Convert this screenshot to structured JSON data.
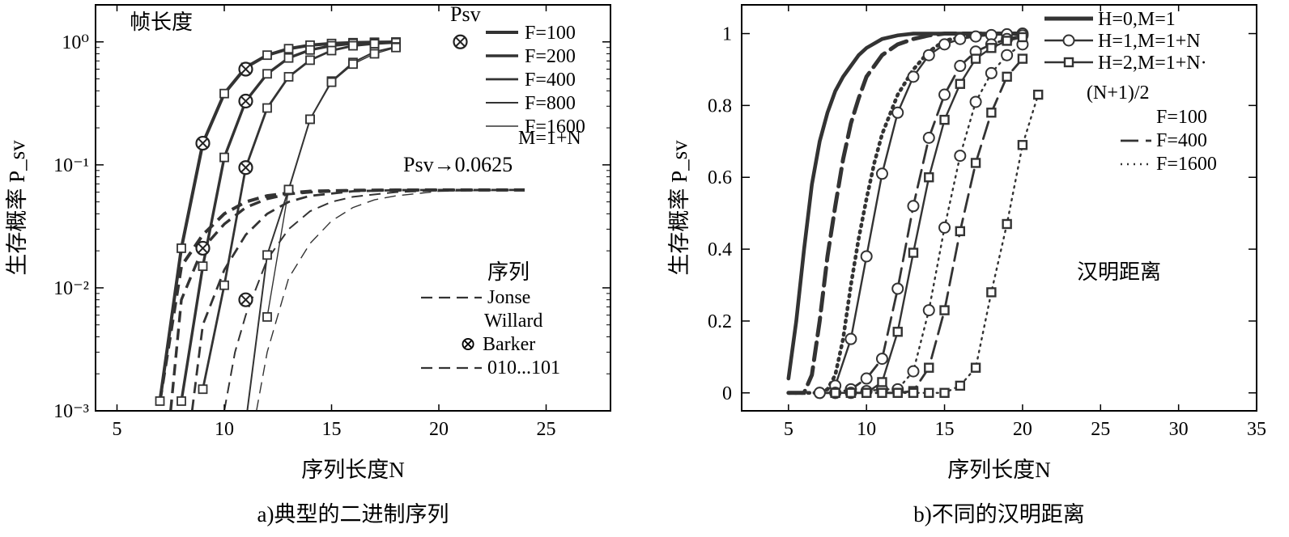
{
  "charts": [
    {
      "caption": "a)典型的二进制序列",
      "xlabel": "序列长度N",
      "ylabel": "生存概率 P_sv",
      "xlim": [
        4,
        28
      ],
      "xticks": [
        5,
        10,
        15,
        20,
        25
      ],
      "xtick_labels": [
        "5",
        "10",
        "15",
        "20",
        "25"
      ],
      "ylog": true,
      "ylim": [
        0.001,
        2
      ],
      "yticks": [
        0.001,
        0.01,
        0.1,
        1
      ],
      "ytick_labels": [
        "10⁻³",
        "10⁻²",
        "10⁻¹",
        "10⁰"
      ],
      "annotations": {
        "top_left": "帧长度",
        "psv_top": "Psv",
        "psv_limit": "Psv→0.0625",
        "m_formula": "M=1+N",
        "legend_title": "序列",
        "barker_glyph": "⊗"
      },
      "frame_legend": [
        "F=100",
        "F=200",
        "F=400",
        "F=800",
        "F=1600"
      ],
      "sequence_legend": [
        "Jonse",
        "Willard",
        "Barker",
        "010...101"
      ],
      "series": {
        "solid_square": [
          {
            "F": 100,
            "x": [
              7,
              8,
              9,
              10,
              11,
              12,
              13,
              14,
              15,
              16,
              17,
              18
            ],
            "y": [
              0.0012,
              0.021,
              0.15,
              0.38,
              0.62,
              0.78,
              0.88,
              0.94,
              0.97,
              0.985,
              0.993,
              0.997
            ]
          },
          {
            "F": 200,
            "x": [
              8,
              9,
              10,
              11,
              12,
              13,
              14,
              15,
              16,
              17,
              18
            ],
            "y": [
              0.0012,
              0.015,
              0.115,
              0.33,
              0.55,
              0.74,
              0.86,
              0.93,
              0.97,
              0.985,
              0.993
            ]
          },
          {
            "F": 400,
            "x": [
              9,
              10,
              11,
              12,
              13,
              14,
              15,
              16,
              17,
              18
            ],
            "y": [
              0.0015,
              0.0105,
              0.095,
              0.29,
              0.52,
              0.71,
              0.85,
              0.93,
              0.965,
              0.985
            ]
          },
          {
            "F": 800,
            "x": [
              11,
              12,
              13,
              14,
              15,
              16,
              17,
              18
            ],
            "y": [
              0.0008,
              0.0185,
              0.063,
              0.235,
              0.48,
              0.68,
              0.83,
              0.91
            ]
          },
          {
            "F": 1600,
            "x": [
              12,
              13,
              14,
              15,
              16,
              17,
              18
            ],
            "y": [
              0.0058,
              0.063,
              0.235,
              0.47,
              0.66,
              0.8,
              0.9
            ]
          }
        ],
        "barker_markers": {
          "x": [
            9,
            11,
            21
          ],
          "y": [
            0.15,
            0.6,
            1.0
          ]
        },
        "barker_markers_f200": {
          "x": [
            9,
            11
          ],
          "y": [
            0.021,
            0.33
          ]
        },
        "barker_markers_f400": {
          "x": [
            11
          ],
          "y": [
            0.095
          ]
        },
        "barker_markers_low": {
          "x": [
            11
          ],
          "y": [
            0.008
          ]
        },
        "psv_marker": {
          "x": 21,
          "y": 1.0
        },
        "dashed_limit": [
          {
            "F": 100,
            "x": [
              7,
              8,
              9,
              10,
              11,
              12,
              13,
              14,
              16,
              18,
              20,
              22,
              24
            ],
            "y": [
              0.0012,
              0.015,
              0.027,
              0.04,
              0.05,
              0.056,
              0.059,
              0.061,
              0.062,
              0.0624,
              0.0625,
              0.0625,
              0.0625
            ]
          },
          {
            "F": 200,
            "x": [
              7.5,
              8,
              9,
              10,
              11,
              12,
              13,
              14,
              16,
              18,
              20,
              24
            ],
            "y": [
              0.001,
              0.008,
              0.021,
              0.033,
              0.045,
              0.053,
              0.058,
              0.06,
              0.062,
              0.0624,
              0.0625,
              0.0625
            ]
          },
          {
            "F": 400,
            "x": [
              8.5,
              9,
              10,
              11,
              12,
              13,
              14,
              16,
              18,
              20,
              24
            ],
            "y": [
              0.001,
              0.005,
              0.014,
              0.027,
              0.04,
              0.05,
              0.056,
              0.061,
              0.0623,
              0.0625,
              0.0625
            ]
          },
          {
            "F": 800,
            "x": [
              10,
              10.5,
              11,
              12,
              13,
              14,
              15,
              16,
              18,
              20,
              24
            ],
            "y": [
              0.001,
              0.003,
              0.006,
              0.017,
              0.03,
              0.042,
              0.05,
              0.055,
              0.06,
              0.062,
              0.0625
            ]
          },
          {
            "F": 1600,
            "x": [
              11.5,
              12,
              13,
              14,
              15,
              16,
              17,
              18,
              20,
              24
            ],
            "y": [
              0.001,
              0.003,
              0.012,
              0.023,
              0.035,
              0.045,
              0.052,
              0.056,
              0.061,
              0.0625
            ]
          }
        ]
      }
    },
    {
      "caption": "b)不同的汉明距离",
      "xlabel": "序列长度N",
      "ylabel": "生存概率 P_sv",
      "xlim": [
        2,
        35
      ],
      "xticks": [
        5,
        10,
        15,
        20,
        25,
        30,
        35
      ],
      "xtick_labels": [
        "5",
        "10",
        "15",
        "20",
        "25",
        "30",
        "35"
      ],
      "ylim": [
        -0.05,
        1.08
      ],
      "yticks": [
        0,
        0.2,
        0.4,
        0.6,
        0.8,
        1
      ],
      "ytick_labels": [
        "0",
        "0.2",
        "0.4",
        "0.6",
        "0.8",
        "1"
      ],
      "annotations": {
        "center": "汉明距离"
      },
      "hamming_legend": [
        "H=0,M=1",
        "H=1,M=1+N",
        "H=2,M=1+N·",
        "(N+1)/2"
      ],
      "frame_legend": [
        "F=100",
        "F=400",
        "F=1600"
      ],
      "series": {
        "H0": [
          {
            "F": 100,
            "x": [
              5,
              5.5,
              6,
              6.5,
              7,
              7.5,
              8,
              8.5,
              9,
              9.5,
              10,
              11,
              12,
              13,
              14,
              16,
              18,
              20
            ],
            "y": [
              0.04,
              0.2,
              0.4,
              0.58,
              0.7,
              0.78,
              0.84,
              0.88,
              0.91,
              0.94,
              0.96,
              0.985,
              0.995,
              1,
              1,
              1,
              1,
              1
            ]
          },
          {
            "F": 400,
            "x": [
              5,
              6,
              6.5,
              7,
              7.5,
              8,
              8.5,
              9,
              9.5,
              10,
              11,
              12,
              13,
              14,
              15,
              16,
              18,
              20
            ],
            "y": [
              0,
              0,
              0.05,
              0.2,
              0.38,
              0.52,
              0.65,
              0.75,
              0.82,
              0.88,
              0.94,
              0.97,
              0.985,
              0.995,
              1,
              1,
              1,
              1
            ]
          },
          {
            "F": 1600,
            "x": [
              5,
              7,
              7.5,
              8,
              8.5,
              9,
              9.5,
              10,
              10.5,
              11,
              12,
              13,
              14,
              15,
              16,
              18,
              20
            ],
            "y": [
              0,
              0,
              0.01,
              0.05,
              0.15,
              0.3,
              0.43,
              0.54,
              0.64,
              0.72,
              0.83,
              0.9,
              0.95,
              0.98,
              0.99,
              1,
              1
            ]
          }
        ],
        "H1": [
          {
            "F": 100,
            "x": [
              7,
              8,
              9,
              10,
              11,
              12,
              13,
              14,
              15,
              16,
              17,
              18,
              19,
              20
            ],
            "y": [
              0,
              0.02,
              0.15,
              0.38,
              0.61,
              0.78,
              0.88,
              0.94,
              0.97,
              0.985,
              0.992,
              0.996,
              0.998,
              1
            ]
          },
          {
            "F": 400,
            "x": [
              7,
              8,
              9,
              10,
              11,
              12,
              13,
              14,
              15,
              16,
              17,
              18,
              19,
              20
            ],
            "y": [
              0,
              0,
              0.01,
              0.04,
              0.095,
              0.29,
              0.52,
              0.71,
              0.83,
              0.91,
              0.95,
              0.97,
              0.985,
              0.995
            ]
          },
          {
            "F": 1600,
            "x": [
              8,
              9,
              10,
              11,
              12,
              13,
              14,
              15,
              16,
              17,
              18,
              19,
              20
            ],
            "y": [
              0,
              0,
              0.005,
              0.01,
              0.01,
              0.06,
              0.23,
              0.46,
              0.66,
              0.81,
              0.89,
              0.94,
              0.97
            ]
          }
        ],
        "H2": [
          {
            "F": 100,
            "x": [
              8,
              9,
              10,
              11,
              12,
              13,
              14,
              15,
              16,
              17,
              18,
              19,
              20
            ],
            "y": [
              0,
              0,
              0,
              0.03,
              0.17,
              0.39,
              0.6,
              0.76,
              0.86,
              0.93,
              0.96,
              0.98,
              0.99
            ]
          },
          {
            "F": 400,
            "x": [
              9,
              10,
              11,
              12,
              13,
              14,
              15,
              16,
              17,
              18,
              19,
              20
            ],
            "y": [
              0,
              0,
              0,
              0,
              0.005,
              0.07,
              0.23,
              0.45,
              0.64,
              0.78,
              0.88,
              0.93
            ]
          },
          {
            "F": 1600,
            "x": [
              12,
              13,
              14,
              15,
              16,
              17,
              18,
              19,
              20,
              21
            ],
            "y": [
              0,
              0,
              0,
              0,
              0.02,
              0.07,
              0.28,
              0.47,
              0.69,
              0.83
            ]
          }
        ]
      }
    }
  ]
}
